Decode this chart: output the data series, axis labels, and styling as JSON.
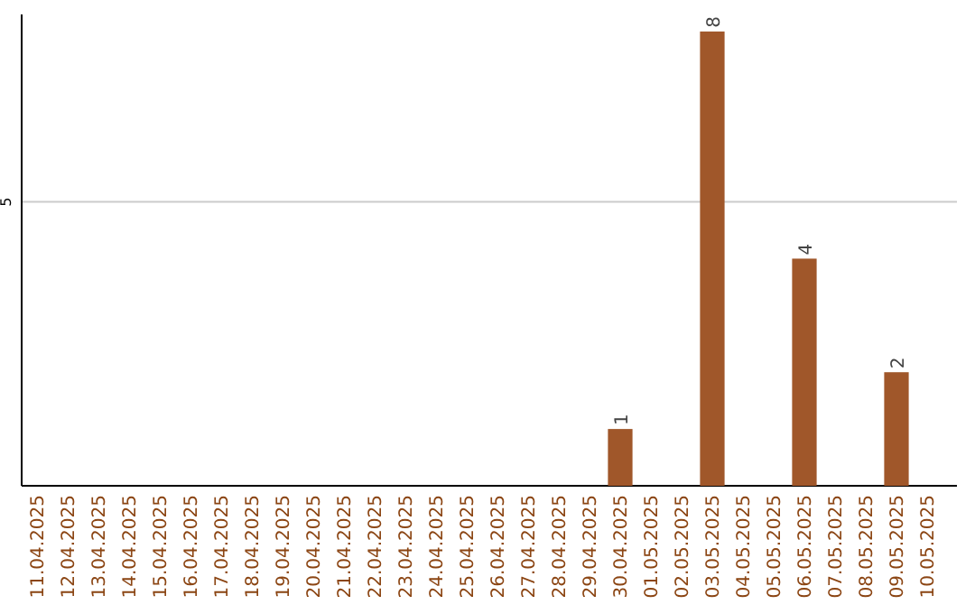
{
  "chart_data": {
    "type": "bar",
    "categories": [
      "11.04.2025",
      "12.04.2025",
      "13.04.2025",
      "14.04.2025",
      "15.04.2025",
      "16.04.2025",
      "17.04.2025",
      "18.04.2025",
      "19.04.2025",
      "20.04.2025",
      "21.04.2025",
      "22.04.2025",
      "23.04.2025",
      "24.04.2025",
      "25.04.2025",
      "26.04.2025",
      "27.04.2025",
      "28.04.2025",
      "29.04.2025",
      "30.04.2025",
      "01.05.2025",
      "02.05.2025",
      "03.05.2025",
      "04.05.2025",
      "05.05.2025",
      "06.05.2025",
      "07.05.2025",
      "08.05.2025",
      "09.05.2025",
      "10.05.2025"
    ],
    "values": [
      null,
      null,
      null,
      null,
      null,
      null,
      null,
      null,
      null,
      null,
      null,
      null,
      null,
      null,
      null,
      null,
      null,
      null,
      null,
      1,
      null,
      null,
      8,
      null,
      null,
      4,
      null,
      null,
      2,
      null
    ],
    "data_labels": true,
    "color": "#a0572a",
    "ylim": [
      0,
      8.3
    ],
    "yticks": [
      5
    ],
    "grid": "y"
  }
}
